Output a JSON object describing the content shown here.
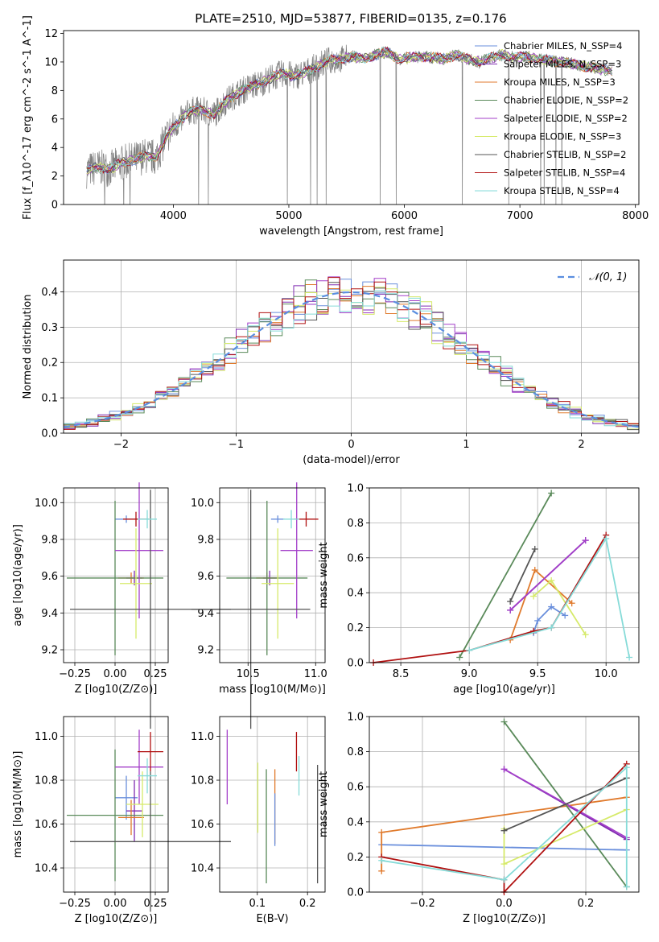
{
  "figure": {
    "title": "PLATE=2510, MJD=53877, FIBERID=0135, z=0.176"
  },
  "colors": {
    "Chabrier MILES": "#6a8fdc",
    "Salpeter MILES": "#7f2bb0",
    "Kroupa MILES": "#e07a2c",
    "Chabrier ELODIE": "#5a8a5a",
    "Salpeter ELODIE": "#a33fc9",
    "Kroupa ELODIE": "#d6ea6a",
    "Chabrier STELIB": "#555555",
    "Salpeter STELIB": "#b01010",
    "Kroupa STELIB": "#86dbd8"
  },
  "chart_data": [
    {
      "id": "spectrum",
      "type": "line",
      "xlabel": "wavelength [Angstrom, rest frame]",
      "ylabel": "Flux [f_λ10^-17 erg cm^-2 s^-1 A^-1]",
      "xlim": [
        3050,
        8030
      ],
      "ylim": [
        0,
        12.2
      ],
      "xticks": [
        4000,
        5000,
        6000,
        7000,
        8000
      ],
      "yticks": [
        0,
        2,
        4,
        6,
        8,
        10,
        12
      ],
      "grid": false,
      "legend_position": "right",
      "data_series": {
        "name": "",
        "color": "#808080",
        "x": [
          3250,
          3350,
          3450,
          3550,
          3650,
          3750,
          3850,
          3950,
          4050,
          4150,
          4250,
          4350,
          4450,
          4550,
          4650,
          4750,
          4850,
          4950,
          5050,
          5150,
          5250,
          5350,
          5450,
          5550,
          5650,
          5750,
          5850,
          5950,
          6050,
          6150,
          6250,
          6350,
          6450,
          6550,
          6650,
          6750,
          6850,
          6950,
          7050,
          7150,
          7250,
          7350,
          7450,
          7550,
          7650,
          7750,
          7800
        ],
        "y": [
          2.4,
          2.6,
          2.5,
          2.9,
          3.1,
          3.4,
          3.3,
          4.9,
          5.8,
          6.6,
          6.6,
          6.3,
          7.2,
          7.8,
          8.2,
          8.5,
          8.9,
          9.2,
          9.0,
          9.3,
          9.7,
          10.1,
          10.2,
          10.4,
          10.2,
          10.5,
          10.7,
          10.2,
          10.3,
          10.4,
          10.3,
          10.2,
          10.5,
          10.2,
          10.0,
          10.3,
          10.5,
          10.3,
          10.4,
          10.2,
          10.1,
          10.0,
          9.9,
          9.7,
          9.6,
          9.4,
          9.3
        ]
      },
      "legend": [
        "Chabrier MILES, N_SSP=4",
        "Salpeter MILES, N_SSP=3",
        "Kroupa MILES, N_SSP=3",
        "Chabrier ELODIE, N_SSP=2",
        "Salpeter ELODIE, N_SSP=2",
        "Kroupa ELODIE, N_SSP=3",
        "Chabrier STELIB, N_SSP=2",
        "Salpeter STELIB, N_SSP=4",
        "Kroupa STELIB, N_SSP=4"
      ]
    },
    {
      "id": "residuals",
      "type": "line",
      "xlabel": "(data-model)/error",
      "ylabel": "Normed distribution",
      "xlim": [
        -2.5,
        2.5
      ],
      "ylim": [
        0,
        0.49
      ],
      "xticks": [
        -2,
        -1,
        0,
        1,
        2
      ],
      "yticks": [
        0.0,
        0.1,
        0.2,
        0.3,
        0.4
      ],
      "grid": true,
      "legend_position": "top-right",
      "reference_curve": {
        "name": "𝒩(0, 1)",
        "color": "#5b8fe0",
        "style": "dashed"
      }
    },
    {
      "id": "age_vs_Z",
      "type": "scatter",
      "xlabel": "Z [log10(Z/Z⊙)]",
      "ylabel": "age [log10(age/yr)]",
      "xlim": [
        -0.32,
        0.33
      ],
      "ylim": [
        9.13,
        10.08
      ],
      "xticks": [
        -0.25,
        0.0,
        0.25
      ],
      "yticks": [
        9.2,
        9.4,
        9.6,
        9.8,
        10.0
      ],
      "grid": true,
      "points": [
        {
          "model": "Chabrier MILES",
          "x": 0.07,
          "y": 9.91,
          "xerr": 0.07,
          "yerr": 0.02
        },
        {
          "model": "Salpeter MILES",
          "x": 0.12,
          "y": 9.59,
          "xerr": 0.05,
          "yerr": 0.04
        },
        {
          "model": "Kroupa MILES",
          "x": 0.1,
          "y": 9.59,
          "xerr": 0.08,
          "yerr": 0.03
        },
        {
          "model": "Chabrier ELODIE",
          "x": 0.0,
          "y": 9.59,
          "xerr": 0.3,
          "yerr": 0.42
        },
        {
          "model": "Salpeter ELODIE",
          "x": 0.15,
          "y": 9.74,
          "xerr": 0.15,
          "yerr": 0.37
        },
        {
          "model": "Kroupa ELODIE",
          "x": 0.13,
          "y": 9.56,
          "xerr": 0.1,
          "yerr": 0.3
        },
        {
          "model": "Chabrier STELIB",
          "x": 0.22,
          "y": 9.42,
          "xerr": 0.5,
          "yerr": 0.65
        },
        {
          "model": "Salpeter STELIB",
          "x": 0.13,
          "y": 9.91,
          "xerr": 0.08,
          "yerr": 0.04
        },
        {
          "model": "Kroupa STELIB",
          "x": 0.2,
          "y": 9.91,
          "xerr": 0.06,
          "yerr": 0.05
        }
      ]
    },
    {
      "id": "age_vs_mass",
      "type": "scatter",
      "xlabel": "mass [log10(M/M⊙)]",
      "ylabel": "",
      "xlim": [
        10.29,
        11.07
      ],
      "ylim": [
        9.13,
        10.08
      ],
      "xticks": [
        10.5,
        11.0
      ],
      "yticks": [
        9.2,
        9.4,
        9.6,
        9.8,
        10.0
      ],
      "grid": true,
      "points": [
        {
          "model": "Chabrier MILES",
          "x": 10.72,
          "y": 9.91,
          "xerr": 0.05,
          "yerr": 0.02
        },
        {
          "model": "Salpeter MILES",
          "x": 10.66,
          "y": 9.59,
          "xerr": 0.05,
          "yerr": 0.04
        },
        {
          "model": "Kroupa MILES",
          "x": 10.64,
          "y": 9.59,
          "xerr": 0.08,
          "yerr": 0.03
        },
        {
          "model": "Chabrier ELODIE",
          "x": 10.64,
          "y": 9.59,
          "xerr": 0.3,
          "yerr": 0.42
        },
        {
          "model": "Salpeter ELODIE",
          "x": 10.86,
          "y": 9.74,
          "xerr": 0.12,
          "yerr": 0.37
        },
        {
          "model": "Kroupa ELODIE",
          "x": 10.72,
          "y": 9.56,
          "xerr": 0.12,
          "yerr": 0.3
        },
        {
          "model": "Chabrier STELIB",
          "x": 10.52,
          "y": 9.42,
          "xerr": 0.44,
          "yerr": 0.65
        },
        {
          "model": "Salpeter STELIB",
          "x": 10.93,
          "y": 9.91,
          "xerr": 0.09,
          "yerr": 0.04
        },
        {
          "model": "Kroupa STELIB",
          "x": 10.82,
          "y": 9.91,
          "xerr": 0.06,
          "yerr": 0.05
        }
      ]
    },
    {
      "id": "weight_vs_age",
      "type": "line",
      "xlabel": "age [log10(age/yr)]",
      "ylabel": "mass weight",
      "xlim": [
        8.27,
        10.24
      ],
      "ylim": [
        0.0,
        1.0
      ],
      "xticks": [
        8.5,
        9.0,
        9.5,
        10.0
      ],
      "yticks": [
        0.0,
        0.2,
        0.4,
        0.6,
        0.8,
        1.0
      ],
      "grid": true,
      "series": [
        {
          "name": "Chabrier MILES",
          "x": [
            9.47,
            9.5,
            9.6,
            9.7
          ],
          "y": [
            0.17,
            0.24,
            0.32,
            0.27
          ]
        },
        {
          "name": "Salpeter MILES",
          "x": [
            9.3,
            9.85
          ],
          "y": [
            0.3,
            0.7
          ]
        },
        {
          "name": "Kroupa MILES",
          "x": [
            9.3,
            9.48,
            9.75
          ],
          "y": [
            0.13,
            0.53,
            0.34
          ]
        },
        {
          "name": "Chabrier ELODIE",
          "x": [
            8.93,
            9.6
          ],
          "y": [
            0.03,
            0.97
          ]
        },
        {
          "name": "Salpeter ELODIE",
          "x": [
            9.3,
            9.85
          ],
          "y": [
            0.3,
            0.7
          ]
        },
        {
          "name": "Kroupa ELODIE",
          "x": [
            9.47,
            9.6,
            9.85
          ],
          "y": [
            0.38,
            0.47,
            0.16
          ]
        },
        {
          "name": "Chabrier STELIB",
          "x": [
            9.3,
            9.48
          ],
          "y": [
            0.35,
            0.65
          ]
        },
        {
          "name": "Salpeter STELIB",
          "x": [
            8.3,
            9.0,
            9.47,
            9.6,
            10.0
          ],
          "y": [
            0.0,
            0.07,
            0.18,
            0.2,
            0.73
          ]
        },
        {
          "name": "Kroupa STELIB",
          "x": [
            9.0,
            9.6,
            10.0,
            10.17
          ],
          "y": [
            0.07,
            0.2,
            0.71,
            0.03
          ]
        }
      ]
    },
    {
      "id": "mass_vs_Z",
      "type": "scatter",
      "xlabel": "Z [log10(Z/Z⊙)]",
      "ylabel": "mass [log10(M/M⊙)]",
      "xlim": [
        -0.32,
        0.33
      ],
      "ylim": [
        10.29,
        11.09
      ],
      "xticks": [
        -0.25,
        0.0,
        0.25
      ],
      "yticks": [
        10.4,
        10.6,
        10.8,
        11.0
      ],
      "grid": true,
      "points": [
        {
          "model": "Chabrier MILES",
          "x": 0.07,
          "y": 10.72,
          "xerr": 0.07,
          "yerr": 0.1
        },
        {
          "model": "Salpeter MILES",
          "x": 0.12,
          "y": 10.66,
          "xerr": 0.05,
          "yerr": 0.14
        },
        {
          "model": "Kroupa MILES",
          "x": 0.1,
          "y": 10.63,
          "xerr": 0.08,
          "yerr": 0.08
        },
        {
          "model": "Chabrier ELODIE",
          "x": 0.0,
          "y": 10.64,
          "xerr": 0.3,
          "yerr": 0.3
        },
        {
          "model": "Salpeter ELODIE",
          "x": 0.15,
          "y": 10.86,
          "xerr": 0.15,
          "yerr": 0.17
        },
        {
          "model": "Kroupa ELODIE",
          "x": 0.17,
          "y": 10.69,
          "xerr": 0.1,
          "yerr": 0.15
        },
        {
          "model": "Chabrier STELIB",
          "x": 0.22,
          "y": 10.52,
          "xerr": 0.5,
          "yerr": 0.32
        },
        {
          "model": "Salpeter STELIB",
          "x": 0.22,
          "y": 10.93,
          "xerr": 0.08,
          "yerr": 0.09
        },
        {
          "model": "Kroupa STELIB",
          "x": 0.2,
          "y": 10.82,
          "xerr": 0.06,
          "yerr": 0.08
        }
      ]
    },
    {
      "id": "mass_vs_EBV",
      "type": "scatter",
      "xlabel": "E(B-V)",
      "ylabel": "",
      "xlim": [
        0.025,
        0.235
      ],
      "ylim": [
        10.29,
        11.09
      ],
      "xticks": [
        0.1,
        0.2
      ],
      "yticks": [
        10.4,
        10.6,
        10.8,
        11.0
      ],
      "grid": true,
      "points": [
        {
          "model": "Salpeter ELODIE",
          "x": 0.04,
          "y": 10.86,
          "yerr": 0.17
        },
        {
          "model": "Kroupa ELODIE",
          "x": 0.101,
          "y": 10.72,
          "yerr": 0.16
        },
        {
          "model": "Chabrier ELODIE",
          "x": 0.118,
          "y": 10.59,
          "yerr": 0.26
        },
        {
          "model": "Kroupa MILES",
          "x": 0.135,
          "y": 10.68,
          "yerr": 0.17
        },
        {
          "model": "Chabrier MILES",
          "x": 0.135,
          "y": 10.62,
          "yerr": 0.12
        },
        {
          "model": "Salpeter STELIB",
          "x": 0.178,
          "y": 10.93,
          "yerr": 0.09
        },
        {
          "model": "Kroupa STELIB",
          "x": 0.183,
          "y": 10.82,
          "yerr": 0.09
        },
        {
          "model": "Chabrier STELIB",
          "x": 0.22,
          "y": 10.6,
          "yerr": 0.27
        }
      ]
    },
    {
      "id": "weight_vs_Z",
      "type": "line",
      "xlabel": "Z [log10(Z/Z⊙)]",
      "ylabel": "mass weight",
      "xlim": [
        -0.33,
        0.33
      ],
      "ylim": [
        0.0,
        1.0
      ],
      "xticks": [
        -0.2,
        0.0,
        0.2
      ],
      "yticks": [
        0.0,
        0.2,
        0.4,
        0.6,
        0.8,
        1.0
      ],
      "grid": true,
      "series": [
        {
          "name": "Chabrier MILES",
          "x": [
            -0.3,
            0.3
          ],
          "y": [
            0.27,
            0.24
          ]
        },
        {
          "name": "Salpeter MILES",
          "x": [
            0.0,
            0.3
          ],
          "y": [
            0.7,
            0.3
          ]
        },
        {
          "name": "Kroupa MILES",
          "x": [
            -0.3,
            -0.3,
            0.3
          ],
          "y": [
            0.12,
            0.34,
            0.54
          ]
        },
        {
          "name": "Chabrier ELODIE",
          "x": [
            0.0,
            0.3
          ],
          "y": [
            0.97,
            0.03
          ]
        },
        {
          "name": "Salpeter ELODIE",
          "x": [
            0.0,
            0.3
          ],
          "y": [
            0.7,
            0.31
          ]
        },
        {
          "name": "Kroupa ELODIE",
          "x": [
            0.0,
            0.0,
            0.3
          ],
          "y": [
            0.36,
            0.16,
            0.47
          ]
        },
        {
          "name": "Chabrier STELIB",
          "x": [
            0.0,
            0.3
          ],
          "y": [
            0.35,
            0.65
          ]
        },
        {
          "name": "Salpeter STELIB",
          "x": [
            -0.3,
            0.0,
            0.0,
            0.3
          ],
          "y": [
            0.2,
            0.07,
            0.0,
            0.73
          ]
        },
        {
          "name": "Kroupa STELIB",
          "x": [
            -0.3,
            0.0,
            0.3,
            0.3
          ],
          "y": [
            0.18,
            0.07,
            0.71,
            0.03
          ]
        }
      ]
    }
  ]
}
